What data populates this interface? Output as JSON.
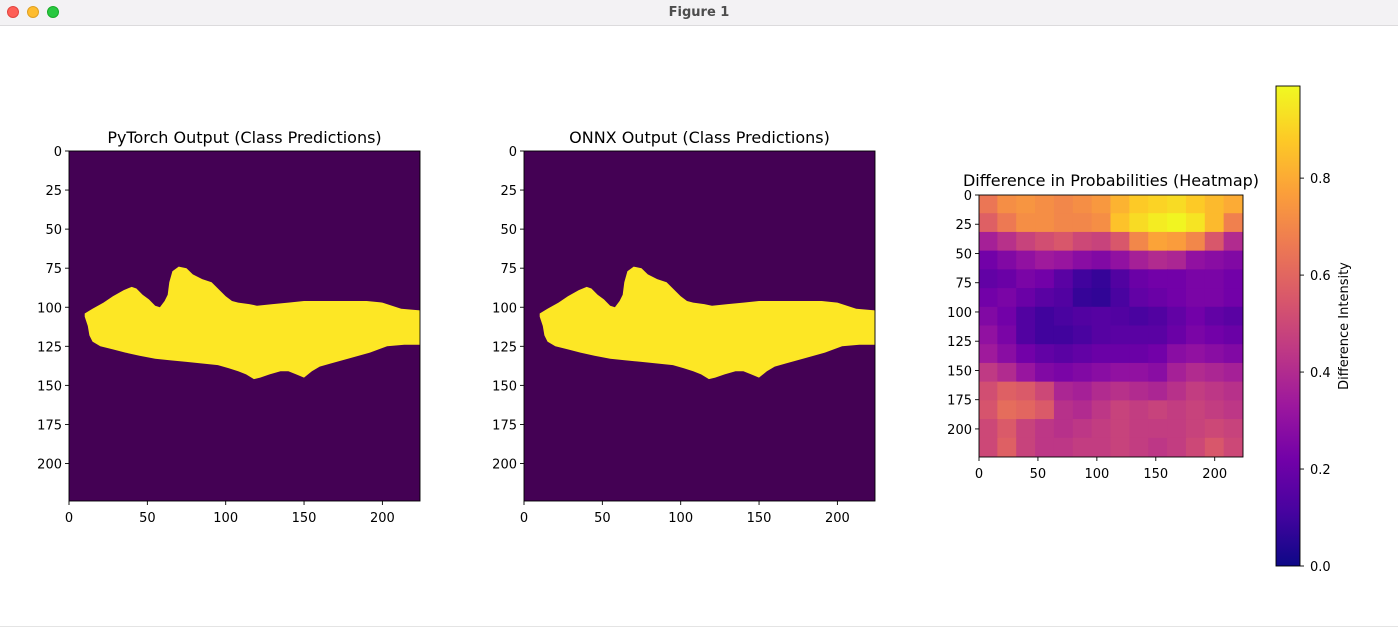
{
  "window": {
    "title": "Figure 1"
  },
  "colors": {
    "viridis_low": "#440154",
    "viridis_high": "#fde725",
    "plasma": [
      "#0d0887",
      "#46039f",
      "#7201a8",
      "#9c179e",
      "#bd3786",
      "#d8576b",
      "#ed7953",
      "#fb9f3a",
      "#fdca26",
      "#f0f921"
    ]
  },
  "chart_data": [
    {
      "type": "heatmap",
      "title": "PyTorch Output (Class Predictions)",
      "colormap": "viridis",
      "xlim": [
        0,
        224
      ],
      "ylim": [
        224,
        0
      ],
      "xticks": [
        0,
        50,
        100,
        150,
        200
      ],
      "yticks": [
        0,
        25,
        50,
        75,
        100,
        125,
        150,
        175,
        200
      ],
      "xtick_labels": [
        "0",
        "50",
        "100",
        "150",
        "200"
      ],
      "ytick_labels": [
        "0",
        "25",
        "50",
        "75",
        "100",
        "125",
        "150",
        "175",
        "200"
      ],
      "classes": [
        0,
        1
      ],
      "mask_outline": [
        [
          10,
          104
        ],
        [
          15,
          101
        ],
        [
          22,
          97
        ],
        [
          28,
          93
        ],
        [
          35,
          89
        ],
        [
          40,
          87
        ],
        [
          43,
          88
        ],
        [
          47,
          92
        ],
        [
          51,
          95
        ],
        [
          55,
          99
        ],
        [
          58,
          100
        ],
        [
          61,
          96
        ],
        [
          63,
          92
        ],
        [
          64,
          84
        ],
        [
          66,
          77
        ],
        [
          70,
          74
        ],
        [
          75,
          75
        ],
        [
          79,
          79
        ],
        [
          85,
          82
        ],
        [
          91,
          84
        ],
        [
          95,
          88
        ],
        [
          100,
          93
        ],
        [
          104,
          96
        ],
        [
          108,
          97
        ],
        [
          115,
          98
        ],
        [
          120,
          99
        ],
        [
          130,
          98
        ],
        [
          140,
          97
        ],
        [
          150,
          96
        ],
        [
          160,
          96
        ],
        [
          170,
          96
        ],
        [
          180,
          96
        ],
        [
          190,
          96
        ],
        [
          200,
          97
        ],
        [
          212,
          101
        ],
        [
          224,
          102
        ],
        [
          224,
          124
        ],
        [
          214,
          124
        ],
        [
          203,
          125
        ],
        [
          192,
          129
        ],
        [
          178,
          133
        ],
        [
          167,
          136
        ],
        [
          160,
          138
        ],
        [
          155,
          141
        ],
        [
          150,
          145
        ],
        [
          145,
          143
        ],
        [
          140,
          141
        ],
        [
          135,
          141
        ],
        [
          128,
          143
        ],
        [
          122,
          145
        ],
        [
          118,
          146
        ],
        [
          113,
          143
        ],
        [
          108,
          141
        ],
        [
          102,
          139
        ],
        [
          95,
          137
        ],
        [
          85,
          136
        ],
        [
          75,
          135
        ],
        [
          65,
          134
        ],
        [
          55,
          133
        ],
        [
          45,
          131
        ],
        [
          36,
          129
        ],
        [
          28,
          127
        ],
        [
          20,
          125
        ],
        [
          15,
          122
        ],
        [
          13,
          118
        ],
        [
          12,
          112
        ],
        [
          10,
          106
        ]
      ]
    },
    {
      "type": "heatmap",
      "title": "ONNX Output (Class Predictions)",
      "colormap": "viridis",
      "xlim": [
        0,
        224
      ],
      "ylim": [
        224,
        0
      ],
      "xticks": [
        0,
        50,
        100,
        150,
        200
      ],
      "yticks": [
        0,
        25,
        50,
        75,
        100,
        125,
        150,
        175,
        200
      ],
      "xtick_labels": [
        "0",
        "50",
        "100",
        "150",
        "200"
      ],
      "ytick_labels": [
        "0",
        "25",
        "50",
        "75",
        "100",
        "125",
        "150",
        "175",
        "200"
      ],
      "classes": [
        0,
        1
      ],
      "mask_outline": [
        [
          10,
          104
        ],
        [
          15,
          101
        ],
        [
          22,
          97
        ],
        [
          28,
          93
        ],
        [
          35,
          89
        ],
        [
          40,
          87
        ],
        [
          43,
          88
        ],
        [
          47,
          92
        ],
        [
          51,
          95
        ],
        [
          55,
          99
        ],
        [
          58,
          100
        ],
        [
          61,
          96
        ],
        [
          63,
          92
        ],
        [
          64,
          84
        ],
        [
          66,
          77
        ],
        [
          70,
          74
        ],
        [
          75,
          75
        ],
        [
          79,
          79
        ],
        [
          85,
          82
        ],
        [
          91,
          84
        ],
        [
          95,
          88
        ],
        [
          100,
          93
        ],
        [
          104,
          96
        ],
        [
          108,
          97
        ],
        [
          115,
          98
        ],
        [
          120,
          99
        ],
        [
          130,
          98
        ],
        [
          140,
          97
        ],
        [
          150,
          96
        ],
        [
          160,
          96
        ],
        [
          170,
          96
        ],
        [
          180,
          96
        ],
        [
          190,
          96
        ],
        [
          200,
          97
        ],
        [
          212,
          101
        ],
        [
          224,
          102
        ],
        [
          224,
          124
        ],
        [
          214,
          124
        ],
        [
          203,
          125
        ],
        [
          192,
          129
        ],
        [
          178,
          133
        ],
        [
          167,
          136
        ],
        [
          160,
          138
        ],
        [
          155,
          141
        ],
        [
          150,
          145
        ],
        [
          145,
          143
        ],
        [
          140,
          141
        ],
        [
          135,
          141
        ],
        [
          128,
          143
        ],
        [
          122,
          145
        ],
        [
          118,
          146
        ],
        [
          113,
          143
        ],
        [
          108,
          141
        ],
        [
          102,
          139
        ],
        [
          95,
          137
        ],
        [
          85,
          136
        ],
        [
          75,
          135
        ],
        [
          65,
          134
        ],
        [
          55,
          133
        ],
        [
          45,
          131
        ],
        [
          36,
          129
        ],
        [
          28,
          127
        ],
        [
          20,
          125
        ],
        [
          15,
          122
        ],
        [
          13,
          118
        ],
        [
          12,
          112
        ],
        [
          10,
          106
        ]
      ]
    },
    {
      "type": "heatmap",
      "title": "Difference in Probabilities (Heatmap)",
      "colormap": "plasma",
      "xlim": [
        0,
        224
      ],
      "ylim": [
        224,
        0
      ],
      "xticks": [
        0,
        50,
        100,
        150,
        200
      ],
      "yticks": [
        0,
        25,
        50,
        75,
        100,
        125,
        150,
        175,
        200
      ],
      "xtick_labels": [
        "0",
        "50",
        "100",
        "150",
        "200"
      ],
      "ytick_labels": [
        "0",
        "25",
        "50",
        "75",
        "100",
        "125",
        "150",
        "175",
        "200"
      ],
      "grid_rows": 14,
      "grid_cols": 14,
      "values": [
        [
          0.65,
          0.72,
          0.74,
          0.72,
          0.7,
          0.72,
          0.75,
          0.82,
          0.88,
          0.9,
          0.92,
          0.88,
          0.84,
          0.8
        ],
        [
          0.58,
          0.66,
          0.72,
          0.72,
          0.7,
          0.7,
          0.72,
          0.86,
          0.92,
          0.96,
          0.98,
          0.94,
          0.84,
          0.68
        ],
        [
          0.36,
          0.42,
          0.48,
          0.52,
          0.55,
          0.5,
          0.48,
          0.55,
          0.7,
          0.78,
          0.76,
          0.7,
          0.55,
          0.4
        ],
        [
          0.22,
          0.26,
          0.3,
          0.34,
          0.32,
          0.28,
          0.26,
          0.3,
          0.36,
          0.4,
          0.38,
          0.3,
          0.28,
          0.26
        ],
        [
          0.18,
          0.2,
          0.24,
          0.22,
          0.16,
          0.1,
          0.08,
          0.14,
          0.2,
          0.22,
          0.22,
          0.24,
          0.24,
          0.22
        ],
        [
          0.22,
          0.24,
          0.2,
          0.16,
          0.14,
          0.08,
          0.07,
          0.12,
          0.18,
          0.2,
          0.22,
          0.24,
          0.24,
          0.22
        ],
        [
          0.26,
          0.22,
          0.14,
          0.1,
          0.12,
          0.14,
          0.15,
          0.14,
          0.12,
          0.14,
          0.18,
          0.22,
          0.18,
          0.16
        ],
        [
          0.3,
          0.24,
          0.14,
          0.1,
          0.1,
          0.12,
          0.15,
          0.16,
          0.16,
          0.16,
          0.2,
          0.24,
          0.22,
          0.2
        ],
        [
          0.34,
          0.28,
          0.22,
          0.18,
          0.16,
          0.18,
          0.2,
          0.2,
          0.2,
          0.22,
          0.28,
          0.3,
          0.28,
          0.26
        ],
        [
          0.45,
          0.4,
          0.32,
          0.26,
          0.24,
          0.26,
          0.28,
          0.3,
          0.3,
          0.28,
          0.36,
          0.4,
          0.38,
          0.36
        ],
        [
          0.52,
          0.58,
          0.56,
          0.5,
          0.38,
          0.36,
          0.4,
          0.42,
          0.4,
          0.38,
          0.42,
          0.46,
          0.44,
          0.42
        ],
        [
          0.54,
          0.62,
          0.6,
          0.56,
          0.42,
          0.4,
          0.44,
          0.48,
          0.46,
          0.48,
          0.46,
          0.48,
          0.46,
          0.44
        ],
        [
          0.5,
          0.56,
          0.48,
          0.44,
          0.42,
          0.44,
          0.46,
          0.48,
          0.46,
          0.46,
          0.46,
          0.48,
          0.5,
          0.48
        ],
        [
          0.5,
          0.58,
          0.48,
          0.44,
          0.44,
          0.46,
          0.46,
          0.48,
          0.46,
          0.44,
          0.46,
          0.5,
          0.55,
          0.5
        ]
      ]
    }
  ],
  "colorbar": {
    "label": "Difference Intensity",
    "colormap": "plasma",
    "range": [
      0.0,
      0.99
    ],
    "ticks": [
      0.0,
      0.2,
      0.4,
      0.6,
      0.8
    ],
    "tick_labels": [
      "0.0",
      "0.2",
      "0.4",
      "0.6",
      "0.8"
    ]
  }
}
